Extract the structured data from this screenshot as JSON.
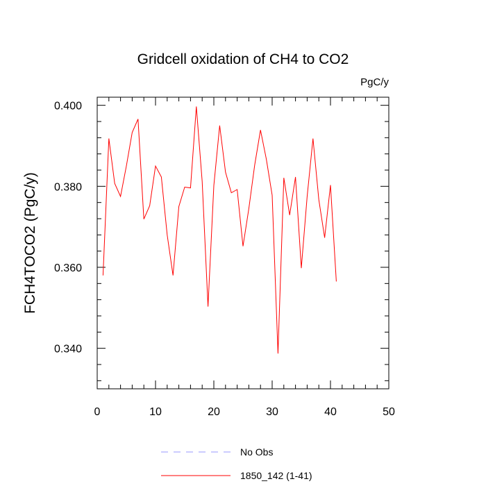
{
  "chart_data": {
    "type": "line",
    "title": "Gridcell oxidation of CH4 to CO2",
    "units": "PgC/y",
    "xlabel": "",
    "ylabel": "FCH4TOCO2  (PgC/y)",
    "xlim": [
      0,
      50
    ],
    "ylim": [
      0.33,
      0.402
    ],
    "x_ticks": [
      0,
      10,
      20,
      30,
      40,
      50
    ],
    "x_tick_labels": [
      "0",
      "10",
      "20",
      "30",
      "40",
      "50"
    ],
    "y_ticks": [
      0.34,
      0.36,
      0.38,
      0.4
    ],
    "y_tick_labels": [
      "0.340",
      "0.360",
      "0.380",
      "0.400"
    ],
    "grid": false,
    "series": [
      {
        "name": "1850_142 (1-41)",
        "color": "#ff0000",
        "style": "solid",
        "x": [
          1,
          2,
          3,
          4,
          5,
          6,
          7,
          8,
          9,
          10,
          11,
          12,
          13,
          14,
          15,
          16,
          17,
          18,
          19,
          20,
          21,
          22,
          23,
          24,
          25,
          26,
          27,
          28,
          29,
          30,
          31,
          32,
          33,
          34,
          35,
          36,
          37,
          38,
          39,
          40,
          41
        ],
        "values": [
          0.358,
          0.3918,
          0.3807,
          0.3775,
          0.385,
          0.3933,
          0.3966,
          0.3719,
          0.3752,
          0.385,
          0.3823,
          0.368,
          0.358,
          0.375,
          0.3798,
          0.3796,
          0.3997,
          0.3812,
          0.3503,
          0.3802,
          0.395,
          0.3835,
          0.3784,
          0.3792,
          0.3652,
          0.3745,
          0.3852,
          0.3939,
          0.3867,
          0.3778,
          0.3387,
          0.3821,
          0.3729,
          0.3823,
          0.3598,
          0.3775,
          0.3918,
          0.3767,
          0.3673,
          0.3803,
          0.3565
        ]
      }
    ],
    "legend": [
      {
        "label": "No Obs",
        "color": "#9999ff",
        "style": "dashed"
      },
      {
        "label": "1850_142 (1-41)",
        "color": "#ff0000",
        "style": "solid"
      }
    ],
    "legend_position": "bottom-center"
  }
}
